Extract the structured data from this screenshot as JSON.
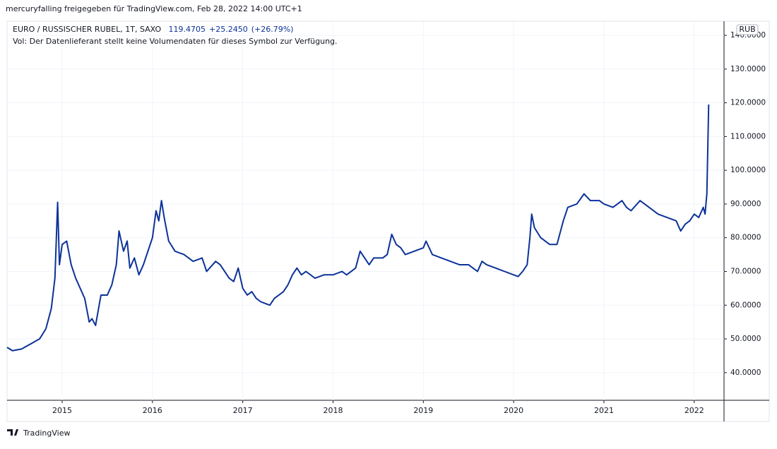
{
  "header": {
    "text": "mercuryfalling freigegeben für TradingView.com, Feb 28, 2022 14:00 UTC+1"
  },
  "chart_data": {
    "type": "line",
    "title": "EURO / RUSSISCHER RUBEL, 1T, SAXO",
    "last": 119.4705,
    "change": {
      "value": 25.245,
      "label": "+25.2450"
    },
    "change_pct": {
      "value": 26.79,
      "label": "(+26.79%)"
    },
    "subtitle": "Vol: Der Datenlieferant stellt keine Volumendaten für dieses Symbol zur Verfügung.",
    "currency": "RUB",
    "color": "#0c3299",
    "grid": true,
    "xlim": [
      2014.39,
      2022.33
    ],
    "ylim": [
      31.8,
      144.2
    ],
    "xticks": [
      2015,
      2016,
      2017,
      2018,
      2019,
      2020,
      2021,
      2022
    ],
    "yticks": [
      {
        "value": 40,
        "label": "40.0000"
      },
      {
        "value": 50,
        "label": "50.0000"
      },
      {
        "value": 60,
        "label": "60.0000"
      },
      {
        "value": 70,
        "label": "70.0000"
      },
      {
        "value": 80,
        "label": "80.0000"
      },
      {
        "value": 90,
        "label": "90.0000"
      },
      {
        "value": 100,
        "label": "100.0000"
      },
      {
        "value": 110,
        "label": "110.0000"
      },
      {
        "value": 120,
        "label": "120.0000"
      },
      {
        "value": 130,
        "label": "130.0000"
      },
      {
        "value": 140,
        "label": "140.0000"
      }
    ],
    "x": [
      2014.39,
      2014.45,
      2014.55,
      2014.65,
      2014.75,
      2014.82,
      2014.88,
      2014.92,
      2014.95,
      2014.97,
      2015.0,
      2015.05,
      2015.1,
      2015.15,
      2015.25,
      2015.3,
      2015.33,
      2015.37,
      2015.43,
      2015.5,
      2015.55,
      2015.6,
      2015.63,
      2015.68,
      2015.72,
      2015.75,
      2015.8,
      2015.85,
      2015.9,
      2015.95,
      2016.0,
      2016.04,
      2016.07,
      2016.1,
      2016.13,
      2016.18,
      2016.25,
      2016.35,
      2016.45,
      2016.55,
      2016.6,
      2016.7,
      2016.75,
      2016.85,
      2016.9,
      2016.95,
      2017.0,
      2017.05,
      2017.1,
      2017.15,
      2017.2,
      2017.3,
      2017.35,
      2017.45,
      2017.5,
      2017.55,
      2017.6,
      2017.65,
      2017.7,
      2017.8,
      2017.9,
      2018.0,
      2018.1,
      2018.15,
      2018.25,
      2018.3,
      2018.35,
      2018.4,
      2018.45,
      2018.55,
      2018.6,
      2018.65,
      2018.7,
      2018.75,
      2018.8,
      2018.9,
      2019.0,
      2019.03,
      2019.1,
      2019.2,
      2019.3,
      2019.4,
      2019.5,
      2019.6,
      2019.65,
      2019.7,
      2019.8,
      2019.9,
      2020.0,
      2020.05,
      2020.1,
      2020.15,
      2020.18,
      2020.2,
      2020.23,
      2020.3,
      2020.4,
      2020.48,
      2020.55,
      2020.6,
      2020.7,
      2020.78,
      2020.85,
      2020.95,
      2021.0,
      2021.1,
      2021.2,
      2021.25,
      2021.3,
      2021.4,
      2021.5,
      2021.6,
      2021.7,
      2021.8,
      2021.85,
      2021.9,
      2021.95,
      2022.0,
      2022.05,
      2022.1,
      2022.12,
      2022.14,
      2022.16
    ],
    "values": [
      47.5,
      46.5,
      47,
      48.5,
      50,
      53,
      59,
      68,
      90.5,
      72,
      78,
      79,
      72,
      68,
      62,
      55,
      56,
      54,
      63,
      63,
      66,
      72,
      82,
      76,
      79,
      71,
      74,
      69,
      72,
      76,
      80,
      88,
      85,
      91,
      86,
      79,
      76,
      75,
      73,
      74,
      70,
      73,
      72,
      68,
      67,
      71,
      65,
      63,
      64,
      62,
      61,
      60,
      62,
      64,
      66,
      69,
      71,
      69,
      70,
      68,
      69,
      69,
      70,
      69,
      71,
      76,
      74,
      72,
      74,
      74,
      75,
      81,
      78,
      77,
      75,
      76,
      77,
      79,
      75,
      74,
      73,
      72,
      72,
      70,
      73,
      72,
      71,
      70,
      69,
      68.5,
      70,
      72,
      80,
      87,
      83,
      80,
      78,
      78,
      85,
      89,
      90,
      93,
      91,
      91,
      90,
      89,
      91,
      89,
      88,
      91,
      89,
      87,
      86,
      85,
      82,
      84,
      85,
      87,
      86,
      89,
      87,
      93,
      119.5
    ]
  },
  "footer": {
    "brand": "TradingView"
  }
}
